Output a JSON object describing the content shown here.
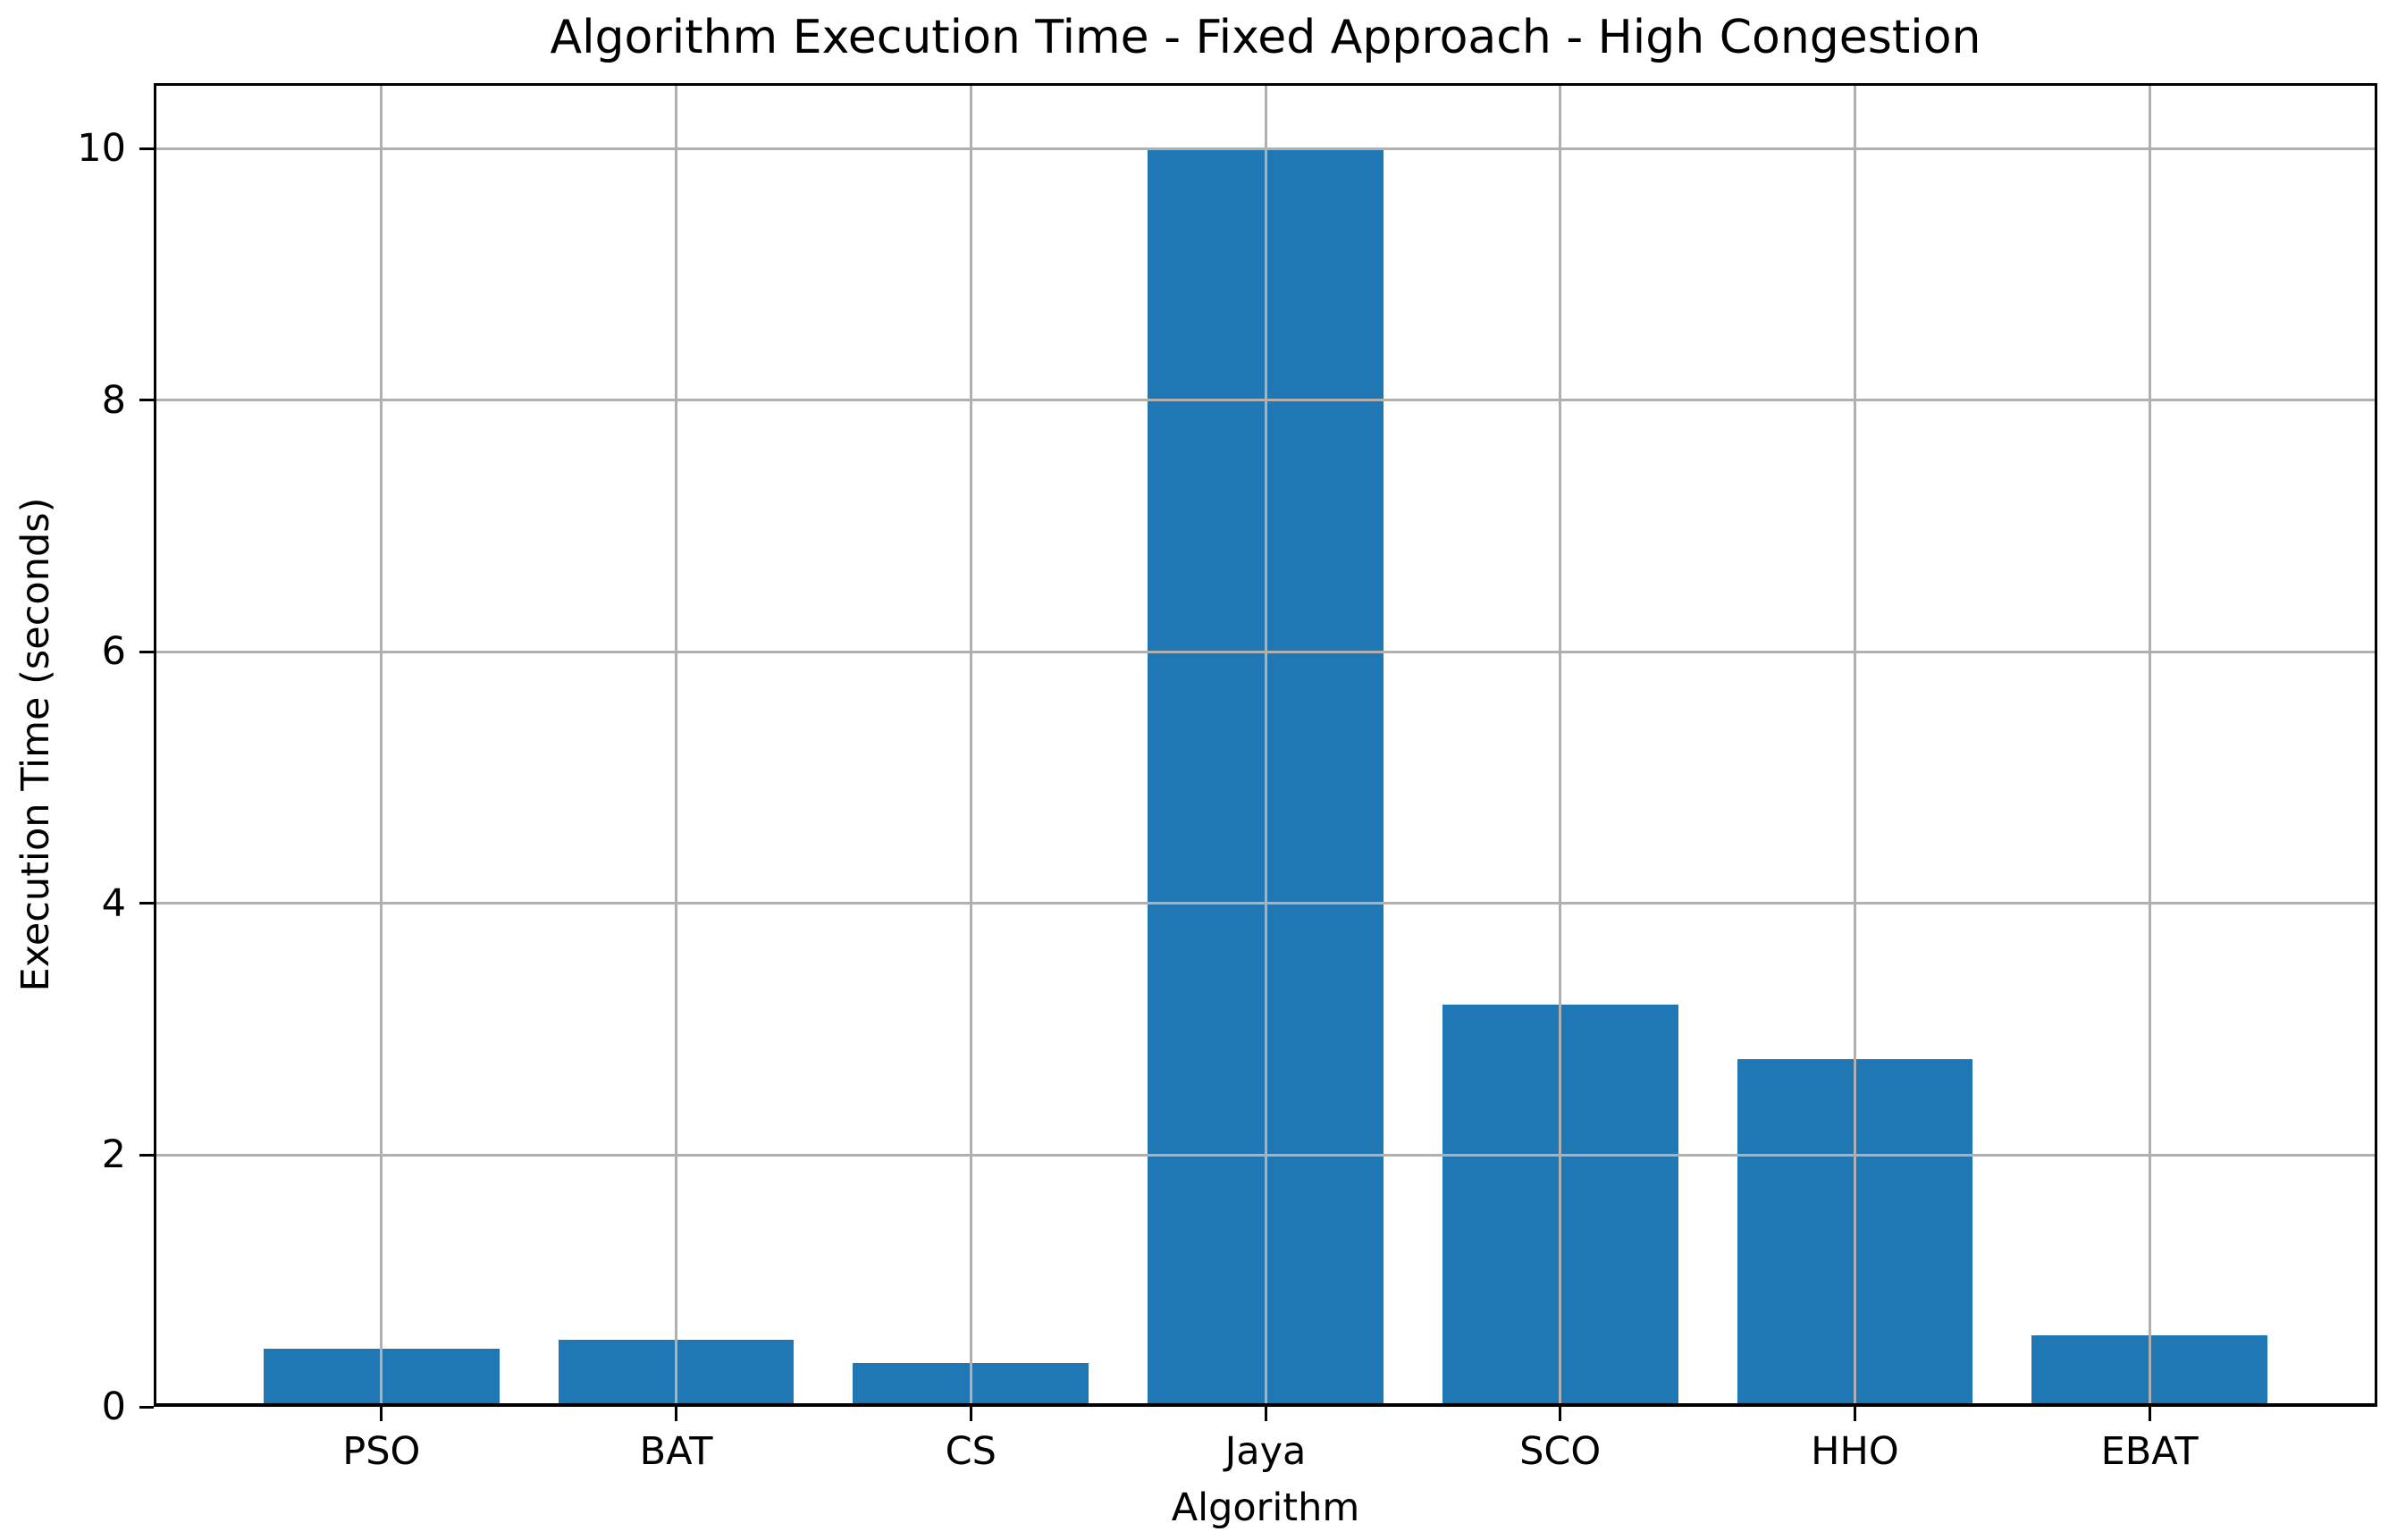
{
  "page": {
    "background": "#ffffff"
  },
  "chart_data": {
    "type": "bar",
    "title": "Algorithm Execution Time - Fixed Approach - High Congestion",
    "xlabel": "Algorithm",
    "ylabel": "Execution Time (seconds)",
    "categories": [
      "PSO",
      "BAT",
      "CS",
      "Jaya",
      "SCO",
      "HHO",
      "EBAT"
    ],
    "values": [
      0.46,
      0.53,
      0.35,
      10.0,
      3.2,
      2.76,
      0.57
    ],
    "ylim": [
      0,
      10.52
    ],
    "yticks": [
      0,
      2,
      4,
      6,
      8,
      10
    ],
    "grid": true,
    "grid_over_bars": true,
    "legend": "none",
    "bar_color": "#1f77b4",
    "grid_color": "#b0b0b0",
    "axis_color": "#000000",
    "text_color": "#000000",
    "bar_width_fraction": 0.8
  }
}
